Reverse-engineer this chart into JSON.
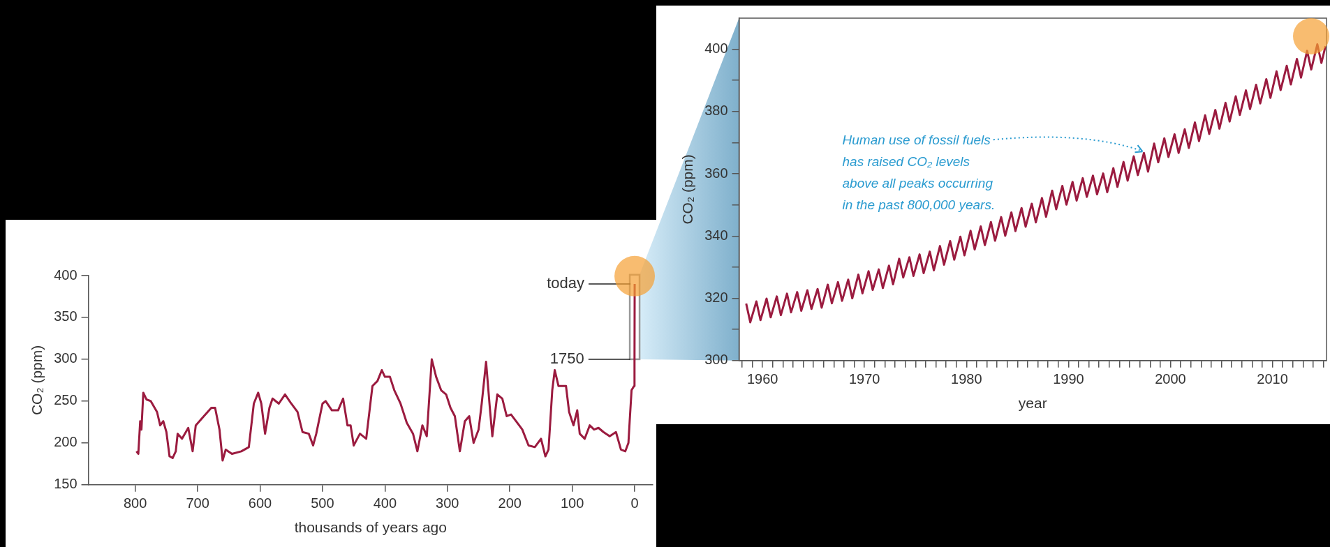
{
  "chart_data": [
    {
      "type": "line",
      "xlabel": "thousands of years ago",
      "ylabel": "CO₂ (ppm)",
      "color": "#9b1b3f",
      "x": [
        798,
        795,
        792,
        790,
        787,
        782,
        775,
        765,
        760,
        755,
        750,
        745,
        740,
        735,
        732,
        725,
        715,
        708,
        703,
        690,
        678,
        672,
        665,
        660,
        655,
        645,
        630,
        618,
        610,
        603,
        598,
        592,
        585,
        580,
        570,
        560,
        550,
        540,
        532,
        522,
        515,
        510,
        500,
        495,
        485,
        475,
        467,
        460,
        455,
        450,
        440,
        430,
        420,
        412,
        405,
        400,
        392,
        385,
        375,
        365,
        355,
        348,
        340,
        333,
        325,
        318,
        310,
        302,
        295,
        288,
        280,
        272,
        265,
        258,
        250,
        245,
        238,
        232,
        228,
        220,
        212,
        205,
        198,
        190,
        180,
        170,
        160,
        150,
        143,
        138,
        132,
        128,
        122,
        115,
        110,
        105,
        98,
        92,
        88,
        80,
        72,
        65,
        58,
        50,
        40,
        30,
        22,
        15,
        10,
        8,
        5,
        1,
        0.27,
        0
      ],
      "values": [
        190,
        187,
        226,
        216,
        260,
        252,
        250,
        237,
        221,
        226,
        213,
        184,
        182,
        190,
        211,
        205,
        218,
        190,
        221,
        232,
        242,
        242,
        216,
        179,
        192,
        187,
        190,
        195,
        247,
        260,
        247,
        211,
        242,
        253,
        247,
        258,
        247,
        237,
        213,
        211,
        197,
        211,
        247,
        250,
        239,
        239,
        253,
        221,
        221,
        197,
        211,
        205,
        268,
        274,
        287,
        279,
        279,
        263,
        247,
        224,
        211,
        190,
        221,
        208,
        300,
        279,
        263,
        258,
        242,
        232,
        190,
        226,
        232,
        200,
        216,
        247,
        297,
        242,
        208,
        258,
        253,
        232,
        234,
        226,
        216,
        197,
        195,
        205,
        184,
        192,
        263,
        287,
        268,
        268,
        268,
        237,
        221,
        239,
        211,
        205,
        221,
        216,
        218,
        213,
        208,
        213,
        192,
        190,
        200,
        226,
        263,
        268,
        300,
        390
      ],
      "xlim": [
        875,
        -29
      ],
      "xticks": [
        800,
        700,
        600,
        500,
        400,
        300,
        200,
        100,
        0
      ],
      "ylim": [
        150,
        400
      ],
      "yticks": [
        150,
        200,
        250,
        300,
        350,
        400
      ],
      "annotations": [
        {
          "text": "today",
          "x": 0,
          "y": 390
        },
        {
          "text": "1750",
          "x": 0.27,
          "y": 300
        }
      ]
    },
    {
      "type": "line",
      "xlabel": "year",
      "ylabel": "CO₂ (ppm)",
      "color": "#9b1b3f",
      "x": [
        1958.4,
        1958.8,
        1959.4,
        1959.8,
        1960.4,
        1960.8,
        1961.4,
        1961.8,
        1962.4,
        1962.8,
        1963.4,
        1963.8,
        1964.4,
        1964.8,
        1965.4,
        1965.8,
        1966.4,
        1966.8,
        1967.4,
        1967.8,
        1968.4,
        1968.8,
        1969.4,
        1969.8,
        1970.4,
        1970.8,
        1971.4,
        1971.8,
        1972.4,
        1972.8,
        1973.4,
        1973.8,
        1974.4,
        1974.8,
        1975.4,
        1975.8,
        1976.4,
        1976.8,
        1977.4,
        1977.8,
        1978.4,
        1978.8,
        1979.4,
        1979.8,
        1980.4,
        1980.8,
        1981.4,
        1981.8,
        1982.4,
        1982.8,
        1983.4,
        1983.8,
        1984.4,
        1984.8,
        1985.4,
        1985.8,
        1986.4,
        1986.8,
        1987.4,
        1987.8,
        1988.4,
        1988.8,
        1989.4,
        1989.8,
        1990.4,
        1990.8,
        1991.4,
        1991.8,
        1992.4,
        1992.8,
        1993.4,
        1993.8,
        1994.4,
        1994.8,
        1995.4,
        1995.8,
        1996.4,
        1996.8,
        1997.4,
        1997.8,
        1998.4,
        1998.8,
        1999.4,
        1999.8,
        2000.4,
        2000.8,
        2001.4,
        2001.8,
        2002.4,
        2002.8,
        2003.4,
        2003.8,
        2004.4,
        2004.8,
        2005.4,
        2005.8,
        2006.4,
        2006.8,
        2007.4,
        2007.8,
        2008.4,
        2008.8,
        2009.4,
        2009.8,
        2010.4,
        2010.8,
        2011.4,
        2011.8,
        2012.4,
        2012.8,
        2013.4,
        2013.8,
        2014.4,
        2014.8,
        2015.2
      ],
      "values": [
        318.3,
        312.3,
        319,
        313,
        319.9,
        313.9,
        320.6,
        314.6,
        321.5,
        315.5,
        322,
        316,
        322.6,
        316.6,
        323,
        317,
        324.4,
        318.4,
        325.2,
        319.2,
        326,
        320,
        327.6,
        321.6,
        328.7,
        322.7,
        329.3,
        323.3,
        330.5,
        324.5,
        332.7,
        326.7,
        333.2,
        327.2,
        334.1,
        328.1,
        335,
        329,
        336.8,
        330.8,
        338.4,
        332.4,
        339.8,
        333.8,
        341.7,
        335.7,
        343.1,
        337.1,
        344.5,
        338.5,
        346.1,
        340.1,
        347.6,
        341.6,
        349,
        343,
        350.4,
        344.4,
        352.2,
        346.2,
        354.6,
        348.6,
        356.1,
        350.1,
        357.4,
        351.4,
        358.6,
        352.6,
        359.4,
        353.4,
        360.1,
        354.1,
        361.8,
        355.8,
        363.8,
        357.8,
        365.6,
        359.6,
        366.7,
        360.7,
        369.7,
        363.7,
        371.4,
        365.4,
        372.7,
        366.7,
        374.3,
        368.3,
        376.5,
        370.5,
        378.8,
        372.8,
        380.5,
        374.5,
        382.8,
        376.8,
        384.9,
        378.9,
        386.8,
        380.8,
        388.6,
        382.6,
        390.4,
        384.4,
        392.9,
        386.9,
        394.7,
        388.7,
        396.9,
        390.9,
        399.5,
        393.5,
        401.6,
        395.6,
        401
      ],
      "xlim": [
        1957.7,
        2015.3
      ],
      "xticks": [
        {
          "value": 1958,
          "label": null
        },
        {
          "value": 1959,
          "label": null
        },
        1960,
        {
          "value": 1961,
          "label": null
        },
        {
          "value": 1962,
          "label": null
        },
        {
          "value": 1963,
          "label": null
        },
        {
          "value": 1964,
          "label": null
        },
        {
          "value": 1965,
          "label": null
        },
        {
          "value": 1966,
          "label": null
        },
        {
          "value": 1967,
          "label": null
        },
        {
          "value": 1968,
          "label": null
        },
        {
          "value": 1969,
          "label": null
        },
        1970,
        {
          "value": 1971,
          "label": null
        },
        {
          "value": 1972,
          "label": null
        },
        {
          "value": 1973,
          "label": null
        },
        {
          "value": 1974,
          "label": null
        },
        {
          "value": 1975,
          "label": null
        },
        {
          "value": 1976,
          "label": null
        },
        {
          "value": 1977,
          "label": null
        },
        {
          "value": 1978,
          "label": null
        },
        {
          "value": 1979,
          "label": null
        },
        1980,
        {
          "value": 1981,
          "label": null
        },
        {
          "value": 1982,
          "label": null
        },
        {
          "value": 1983,
          "label": null
        },
        {
          "value": 1984,
          "label": null
        },
        {
          "value": 1985,
          "label": null
        },
        {
          "value": 1986,
          "label": null
        },
        {
          "value": 1987,
          "label": null
        },
        {
          "value": 1988,
          "label": null
        },
        {
          "value": 1989,
          "label": null
        },
        1990,
        {
          "value": 1991,
          "label": null
        },
        {
          "value": 1992,
          "label": null
        },
        {
          "value": 1993,
          "label": null
        },
        {
          "value": 1994,
          "label": null
        },
        {
          "value": 1995,
          "label": null
        },
        {
          "value": 1996,
          "label": null
        },
        {
          "value": 1997,
          "label": null
        },
        {
          "value": 1998,
          "label": null
        },
        {
          "value": 1999,
          "label": null
        },
        2000,
        {
          "value": 2001,
          "label": null
        },
        {
          "value": 2002,
          "label": null
        },
        {
          "value": 2003,
          "label": null
        },
        {
          "value": 2004,
          "label": null
        },
        {
          "value": 2005,
          "label": null
        },
        {
          "value": 2006,
          "label": null
        },
        {
          "value": 2007,
          "label": null
        },
        {
          "value": 2008,
          "label": null
        },
        {
          "value": 2009,
          "label": null
        },
        2010,
        {
          "value": 2011,
          "label": null
        },
        {
          "value": 2012,
          "label": null
        },
        {
          "value": 2013,
          "label": null
        },
        {
          "value": 2014,
          "label": null
        },
        {
          "value": 2015,
          "label": null
        }
      ],
      "ylim": [
        300,
        410
      ],
      "yticks": [
        300,
        {
          "value": 310,
          "label": null
        },
        320,
        {
          "value": 330,
          "label": null
        },
        340,
        {
          "value": 350,
          "label": null
        },
        360,
        {
          "value": 370,
          "label": null
        },
        380,
        {
          "value": 390,
          "label": null
        },
        400
      ],
      "annotations": [
        {
          "text": "Human use of fossil fuels has raised CO₂ levels above all peaks occurring in the past 800,000 years.",
          "x": 1997.4,
          "y": 366.7
        }
      ]
    }
  ]
}
